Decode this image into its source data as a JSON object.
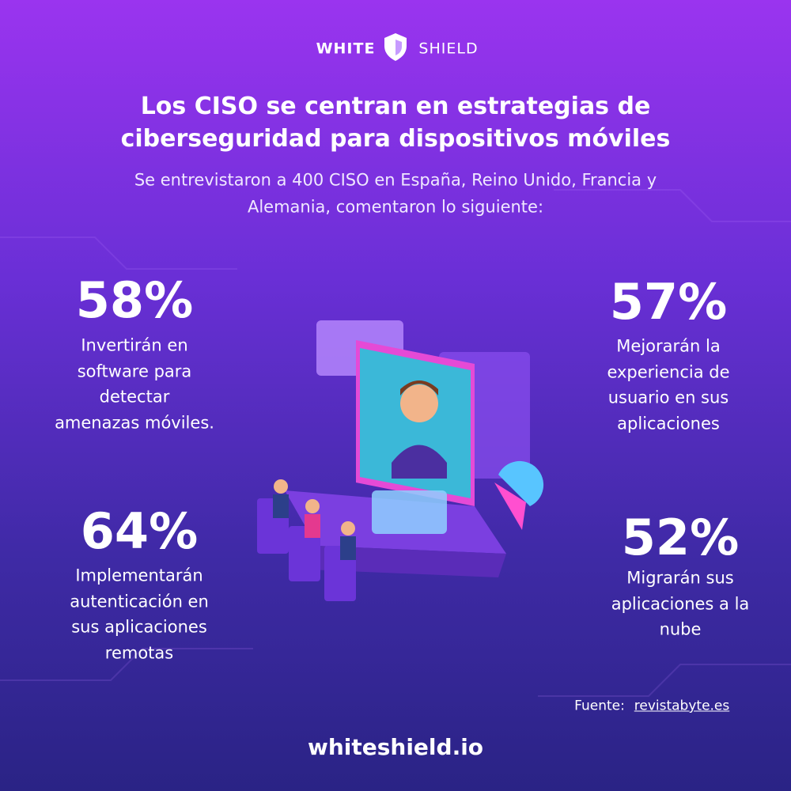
{
  "header": {
    "brand_left": "WHITE",
    "brand_right": "SHIELD"
  },
  "title": [
    "Los CISO se centran en estrategias de",
    "ciberseguridad para dispositivos móviles"
  ],
  "subtitle": [
    "Se entrevistaron a 400 CISO en España, Reino Unido, Francia y",
    "Alemania, comentaron lo siguiente:"
  ],
  "stats": [
    {
      "value": "58%",
      "lines": [
        "Invertirán en",
        "software para",
        "detectar",
        "amenazas móviles."
      ]
    },
    {
      "value": "57%",
      "lines": [
        "Mejorarán la",
        "experiencia de",
        "usuario en sus",
        "aplicaciones"
      ]
    },
    {
      "value": "64%",
      "lines": [
        "Implementarán",
        "autenticación en",
        "sus aplicaciones",
        "remotas"
      ]
    },
    {
      "value": "52%",
      "lines": [
        "Migrarán sus",
        "aplicaciones a la",
        "nube"
      ]
    }
  ],
  "source": {
    "label": "Fuente:",
    "link": "revistabyte.es"
  },
  "footer": "whiteshield.io"
}
